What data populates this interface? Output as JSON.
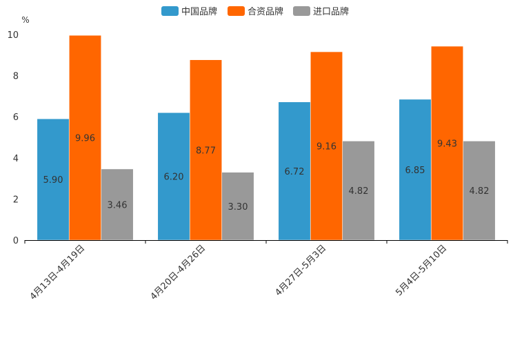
{
  "chart_data": {
    "type": "bar",
    "title": "",
    "xlabel": "",
    "ylabel": "%",
    "ylim": [
      0,
      10
    ],
    "yticks": [
      0,
      2,
      4,
      6,
      8,
      10
    ],
    "grid": false,
    "legend_position": "top-center",
    "categories": [
      "4月13日-4月19日",
      "4月20日-4月26日",
      "4月27日-5月3日",
      "5月4日-5月10日"
    ],
    "series": [
      {
        "name": "中国品牌",
        "color": "#3399cc",
        "values": [
          5.9,
          6.2,
          6.72,
          6.85
        ],
        "labels": [
          "5.90",
          "6.20",
          "6.72",
          "6.85"
        ]
      },
      {
        "name": "合资品牌",
        "color": "#ff6600",
        "values": [
          9.96,
          8.77,
          9.16,
          9.43
        ],
        "labels": [
          "9.96",
          "8.77",
          "9.16",
          "9.43"
        ]
      },
      {
        "name": "进口品牌",
        "color": "#999999",
        "values": [
          3.46,
          3.3,
          4.82,
          4.82
        ],
        "labels": [
          "3.46",
          "3.30",
          "4.82",
          "4.82"
        ]
      }
    ]
  }
}
